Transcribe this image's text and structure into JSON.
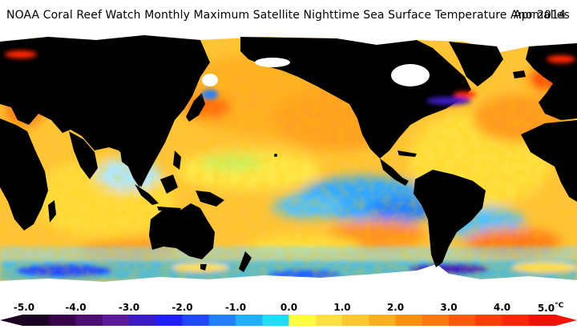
{
  "title": {
    "text": "NOAA Coral Reef Watch Monthly Maximum Satellite Nighttime Sea Surface Temperature Anomalies",
    "date": "Apr 2014"
  },
  "map": {
    "projection": "equirectangular, Pacific-centered",
    "variable": "Sea Surface Temperature Anomaly",
    "land_color": "#000000",
    "ice_color": "#ffffff"
  },
  "colorbar": {
    "min": -5.0,
    "max": 5.0,
    "unit": "°C",
    "extend": "both",
    "tick_labels": [
      "-5.0",
      "-4.0",
      "-3.0",
      "-2.0",
      "-1.0",
      "0.0",
      "1.0",
      "2.0",
      "3.0",
      "4.0",
      "5.0"
    ],
    "colors": [
      "#1a0022",
      "#38004a",
      "#4b0e73",
      "#5a1a99",
      "#3c1ac4",
      "#2020ff",
      "#2048ff",
      "#2080ff",
      "#20b0ff",
      "#20dcff",
      "#ffff40",
      "#ffe040",
      "#ffc830",
      "#ffb020",
      "#ff9010",
      "#ff7810",
      "#ff5808",
      "#ff3c00",
      "#ff2800",
      "#f01400"
    ]
  }
}
